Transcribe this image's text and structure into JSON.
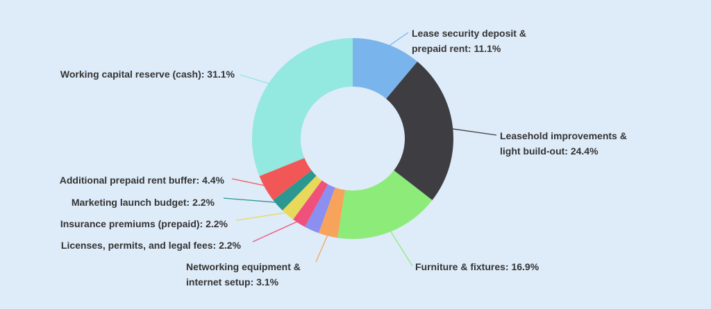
{
  "chart_data": {
    "type": "donut",
    "labels": [
      "Lease security deposit & prepaid rent: 11.1%",
      "Leasehold improvements & light build-out: 24.4%",
      "Furniture & fixtures: 16.9%",
      "Networking equipment & internet setup: 3.1%",
      null,
      "Licenses, permits, and legal fees: 2.2%",
      "Insurance premiums (prepaid): 2.2%",
      "Marketing launch budget: 2.2%",
      "Additional prepaid rent buffer: 4.4%",
      "Working capital reserve (cash): 31.1%"
    ],
    "values": [
      11.1,
      24.4,
      16.9,
      3.1,
      2.4,
      2.2,
      2.2,
      2.2,
      4.4,
      31.1
    ],
    "colors": [
      "#7ab4ec",
      "#3e3e42",
      "#8deb7a",
      "#f7a35c",
      "#8a8ff0",
      "#f0517a",
      "#e8d95a",
      "#2a9890",
      "#f25757",
      "#93e8e0"
    ]
  }
}
